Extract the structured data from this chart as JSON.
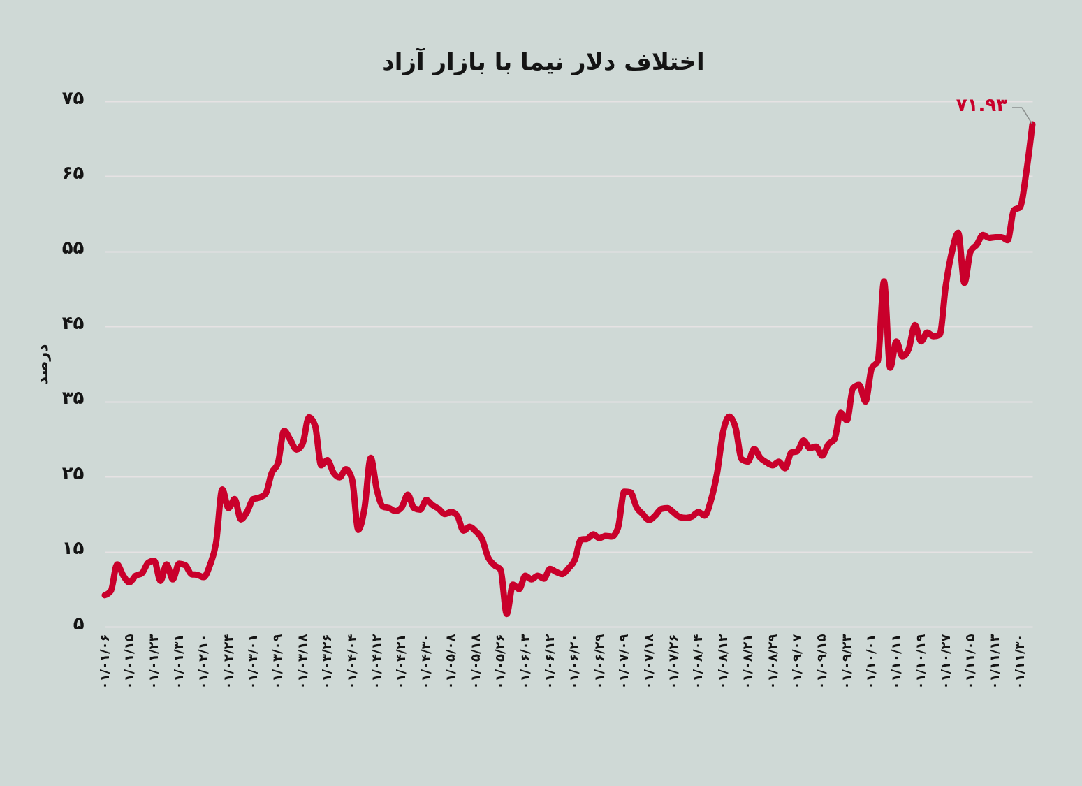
{
  "chart_data": {
    "type": "line",
    "title": "اختلاف دلار نیما با بازار آزاد",
    "ylabel": "درصد",
    "categories": [
      "۰۱/۰۱/۰۶",
      null,
      null,
      null,
      "۰۱/۰۱/۱۵",
      null,
      null,
      null,
      "۰۱/۰۱/۲۳",
      null,
      null,
      null,
      "۰۱/۰۱/۳۱",
      null,
      null,
      null,
      "۰۱/۰۲/۱۰",
      null,
      null,
      null,
      "۰۱/۰۲/۲۴",
      null,
      null,
      null,
      "۰۱/۰۳/۰۱",
      null,
      null,
      null,
      "۰۱/۰۳/۰۹",
      null,
      null,
      null,
      "۰۱/۰۳/۱۸",
      null,
      null,
      null,
      "۰۱/۰۳/۲۶",
      null,
      null,
      null,
      "۰۱/۰۴/۰۴",
      null,
      null,
      null,
      "۰۱/۰۴/۱۲",
      null,
      null,
      null,
      "۰۱/۰۴/۲۱",
      null,
      null,
      null,
      "۰۱/۰۴/۳۰",
      null,
      null,
      null,
      "۰۱/۰۵/۰۸",
      null,
      null,
      null,
      "۰۱/۰۵/۱۸",
      null,
      null,
      null,
      "۰۱/۰۵/۲۶",
      null,
      null,
      null,
      "۰۱/۰۶/۰۳",
      null,
      null,
      null,
      "۰۱/۰۶/۱۲",
      null,
      null,
      null,
      "۰۱/۰۶/۲۰",
      null,
      null,
      null,
      "۰۱/۰۶/۲۹",
      null,
      null,
      null,
      "۰۱/۰۷/۰۹",
      null,
      null,
      null,
      "۰۱/۰۷/۱۸",
      null,
      null,
      null,
      "۰۱/۰۷/۲۶",
      null,
      null,
      null,
      "۰۱/۰۸/۰۴",
      null,
      null,
      null,
      "۰۱/۰۸/۱۲",
      null,
      null,
      null,
      "۰۱/۰۸/۲۱",
      null,
      null,
      null,
      "۰۱/۰۸/۲۹",
      null,
      null,
      null,
      "۰۱/۰۹/۰۷",
      null,
      null,
      null,
      "۰۱/۰۹/۱۵",
      null,
      null,
      null,
      "۰۱/۰۹/۲۳",
      null,
      null,
      null,
      "۰۱/۱۰/۰۱",
      null,
      null,
      null,
      "۰۱/۱۰/۱۱",
      null,
      null,
      null,
      "۰۱/۱۰/۱۹",
      null,
      null,
      null,
      "۰۱/۱۰/۲۷",
      null,
      null,
      null,
      "۰۱/۱۱/۰۵",
      null,
      null,
      null,
      "۰۱/۱۱/۱۳",
      null,
      null,
      null,
      "۰۱/۱۱/۳۰",
      null,
      null
    ],
    "series": [
      {
        "color": "#c9002b",
        "values": [
          9.2,
          9.8,
          13.3,
          11.8,
          10.9,
          11.8,
          12.1,
          13.5,
          13.8,
          11.1,
          13.3,
          11.3,
          13.4,
          13.2,
          12.0,
          11.9,
          11.6,
          13.2,
          16.2,
          23.3,
          20.8,
          22.0,
          19.3,
          20.3,
          22.0,
          22.2,
          22.7,
          25.5,
          26.8,
          31.1,
          29.9,
          28.6,
          29.4,
          32.9,
          31.8,
          26.5,
          27.2,
          25.5,
          24.9,
          26.0,
          24.6,
          17.9,
          20.8,
          27.5,
          23.2,
          21.0,
          20.8,
          20.4,
          20.9,
          22.6,
          20.8,
          20.6,
          21.9,
          21.2,
          20.7,
          20.0,
          20.3,
          19.8,
          17.8,
          18.3,
          17.7,
          16.7,
          14.2,
          13.2,
          12.6,
          6.7,
          10.6,
          10.0,
          11.8,
          11.3,
          11.8,
          11.4,
          12.7,
          12.3,
          12.0,
          12.8,
          13.9,
          16.6,
          16.7,
          17.3,
          16.8,
          17.1,
          17.0,
          18.2,
          23.0,
          22.9,
          20.9,
          20.0,
          19.2,
          19.8,
          20.7,
          20.8,
          20.2,
          19.6,
          19.5,
          19.7,
          20.3,
          19.8,
          21.8,
          25.4,
          31.0,
          33.0,
          31.5,
          27.3,
          27.0,
          28.7,
          27.5,
          26.9,
          26.5,
          27.0,
          26.1,
          28.2,
          28.4,
          29.8,
          28.8,
          29.0,
          27.8,
          29.3,
          30.0,
          33.5,
          32.5,
          36.8,
          37.2,
          35.0,
          39.4,
          40.4,
          51.0,
          39.5,
          43.0,
          41.0,
          42.0,
          45.2,
          43.0,
          44.2,
          43.7,
          43.9,
          50.5,
          55.0,
          57.5,
          50.8,
          55.0,
          55.9,
          57.2,
          56.8,
          56.9,
          56.9,
          56.5,
          60.5,
          60.9,
          65.5,
          71.93
        ],
        "value_labels": [
          null,
          null,
          null,
          null,
          null,
          null,
          null,
          null,
          null,
          null,
          null,
          null,
          null,
          null,
          null,
          null,
          null,
          null,
          null,
          null,
          null,
          null,
          null,
          null,
          null,
          null,
          null,
          null,
          null,
          null,
          null,
          null,
          null,
          null,
          null,
          null,
          null,
          null,
          null,
          null,
          null,
          null,
          null,
          null,
          null,
          null,
          null,
          null,
          null,
          null,
          null,
          null,
          null,
          null,
          null,
          null,
          null,
          null,
          null,
          null,
          null,
          null,
          null,
          null,
          null,
          null,
          null,
          null,
          null,
          null,
          null,
          null,
          null,
          null,
          null,
          null,
          null,
          null,
          null,
          null,
          null,
          null,
          null,
          null,
          null,
          null,
          null,
          null,
          null,
          null,
          null,
          null,
          null,
          null,
          null,
          null,
          null,
          null,
          null,
          null,
          null,
          null,
          null,
          null,
          null,
          null,
          null,
          null,
          null,
          null,
          null,
          null,
          null,
          null,
          null,
          null,
          null,
          null,
          null,
          null,
          null,
          null,
          null,
          null,
          null,
          null,
          null,
          null,
          null,
          null,
          null,
          null,
          null,
          null,
          null,
          null,
          null,
          null,
          null,
          null,
          null,
          null,
          null,
          null,
          null,
          null,
          null,
          null,
          null,
          null,
          "۷۱.۹۳"
        ]
      }
    ],
    "ylim": [
      5,
      75
    ],
    "yticks": [
      {
        "value": 5,
        "label": "۵"
      },
      {
        "value": 15,
        "label": "۱۵"
      },
      {
        "value": 25,
        "label": "۲۵"
      },
      {
        "value": 35,
        "label": "۳۵"
      },
      {
        "value": 45,
        "label": "۴۵"
      },
      {
        "value": 55,
        "label": "۵۵"
      },
      {
        "value": 65,
        "label": "۶۵"
      },
      {
        "value": 75,
        "label": "۷۵"
      }
    ],
    "grid": "y"
  }
}
